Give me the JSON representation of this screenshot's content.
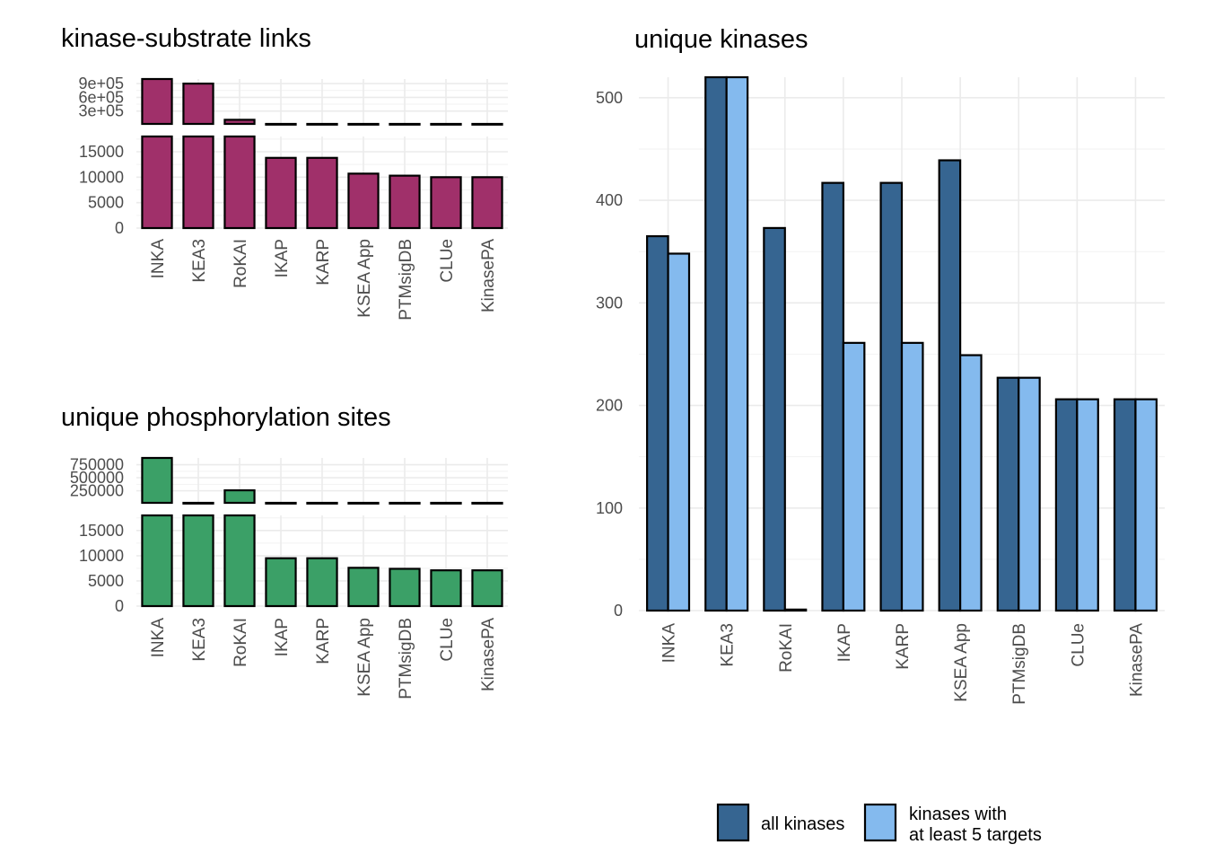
{
  "chart_data": [
    {
      "type": "bar",
      "title": "kinase-substrate links",
      "color": "#A0306A",
      "axis_break": true,
      "categories": [
        "INKA",
        "KEA3",
        "RoKAI",
        "IKAP",
        "KARP",
        "KSEA App",
        "PTMsigDB",
        "CLUe",
        "KinasePA"
      ],
      "values": [
        1000000,
        900000,
        110000,
        13800,
        13800,
        10700,
        10300,
        10000,
        10000
      ],
      "lower_panel": {
        "ylim": [
          0,
          18000
        ],
        "ticks": [
          0,
          5000,
          10000,
          15000
        ],
        "tick_labels": [
          "0",
          "5000",
          "10000",
          "15000"
        ]
      },
      "upper_panel": {
        "ylim": [
          20000,
          1000000
        ],
        "ticks": [
          300000,
          600000,
          900000
        ],
        "tick_labels": [
          "3e+05",
          "6e+05",
          "9e+05"
        ]
      }
    },
    {
      "type": "bar",
      "title": "unique phosphorylation sites",
      "color": "#3BA067",
      "axis_break": true,
      "categories": [
        "INKA",
        "KEA3",
        "RoKAI",
        "IKAP",
        "KARP",
        "KSEA App",
        "PTMsigDB",
        "CLUe",
        "KinasePA"
      ],
      "values": [
        880000,
        18000,
        260000,
        9500,
        9500,
        7600,
        7400,
        7100,
        7100
      ],
      "lower_panel": {
        "ylim": [
          0,
          18000
        ],
        "ticks": [
          0,
          5000,
          10000,
          15000
        ],
        "tick_labels": [
          "0",
          "5000",
          "10000",
          "15000"
        ]
      },
      "upper_panel": {
        "ylim": [
          20000,
          880000
        ],
        "ticks": [
          250000,
          500000,
          750000
        ],
        "tick_labels": [
          "250000",
          "500000",
          "750000"
        ]
      }
    },
    {
      "type": "bar",
      "title": "unique kinases",
      "categories": [
        "INKA",
        "KEA3",
        "RoKAI",
        "IKAP",
        "KARP",
        "KSEA App",
        "PTMsigDB",
        "CLUe",
        "KinasePA"
      ],
      "series": [
        {
          "name": "all kinases",
          "color": "#366591",
          "values": [
            365,
            520,
            373,
            417,
            417,
            439,
            227,
            206,
            206
          ]
        },
        {
          "name": "kinases with at least 5 targets",
          "name_lines": [
            "kinases with",
            "at least 5 targets"
          ],
          "color": "#84BAEE",
          "values": [
            348,
            520,
            1,
            261,
            261,
            249,
            227,
            206,
            206
          ]
        }
      ],
      "ylim": [
        0,
        520
      ],
      "ticks": [
        0,
        100,
        200,
        300,
        400,
        500
      ],
      "tick_labels": [
        "0",
        "100",
        "200",
        "300",
        "400",
        "500"
      ],
      "legend_position": "bottom"
    }
  ]
}
